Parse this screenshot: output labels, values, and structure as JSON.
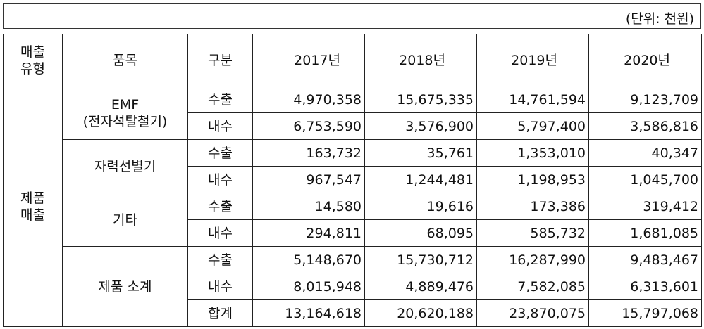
{
  "unit": "(단위: 천원)",
  "headers": {
    "type_line1": "매출",
    "type_line2": "유형",
    "item": "품목",
    "div": "구분",
    "years": [
      "2017년",
      "2018년",
      "2019년",
      "2020년"
    ]
  },
  "category": {
    "line1": "제품",
    "line2": "매출"
  },
  "groups": [
    {
      "name_line1": "EMF",
      "name_line2": "(전자석탈철기)",
      "rows": [
        {
          "div": "수출",
          "values": [
            "4,970,358",
            "15,675,335",
            "14,761,594",
            "9,123,709"
          ]
        },
        {
          "div": "내수",
          "values": [
            "6,753,590",
            "3,576,900",
            "5,797,400",
            "3,586,816"
          ]
        }
      ]
    },
    {
      "name_line1": "자력선별기",
      "name_line2": "",
      "rows": [
        {
          "div": "수출",
          "values": [
            "163,732",
            "35,761",
            "1,353,010",
            "40,347"
          ]
        },
        {
          "div": "내수",
          "values": [
            "967,547",
            "1,244,481",
            "1,198,953",
            "1,045,700"
          ]
        }
      ]
    },
    {
      "name_line1": "기타",
      "name_line2": "",
      "rows": [
        {
          "div": "수출",
          "values": [
            "14,580",
            "19,616",
            "173,386",
            "319,412"
          ]
        },
        {
          "div": "내수",
          "values": [
            "294,811",
            "68,095",
            "585,732",
            "1,681,085"
          ]
        }
      ]
    },
    {
      "name_line1": "제품 소계",
      "name_line2": "",
      "rows": [
        {
          "div": "수출",
          "values": [
            "5,148,670",
            "15,730,712",
            "16,287,990",
            "9,483,467"
          ]
        },
        {
          "div": "내수",
          "values": [
            "8,015,948",
            "4,889,476",
            "7,582,085",
            "6,313,601"
          ]
        },
        {
          "div": "합계",
          "values": [
            "13,164,618",
            "20,620,188",
            "23,870,075",
            "15,797,068"
          ]
        }
      ]
    }
  ]
}
